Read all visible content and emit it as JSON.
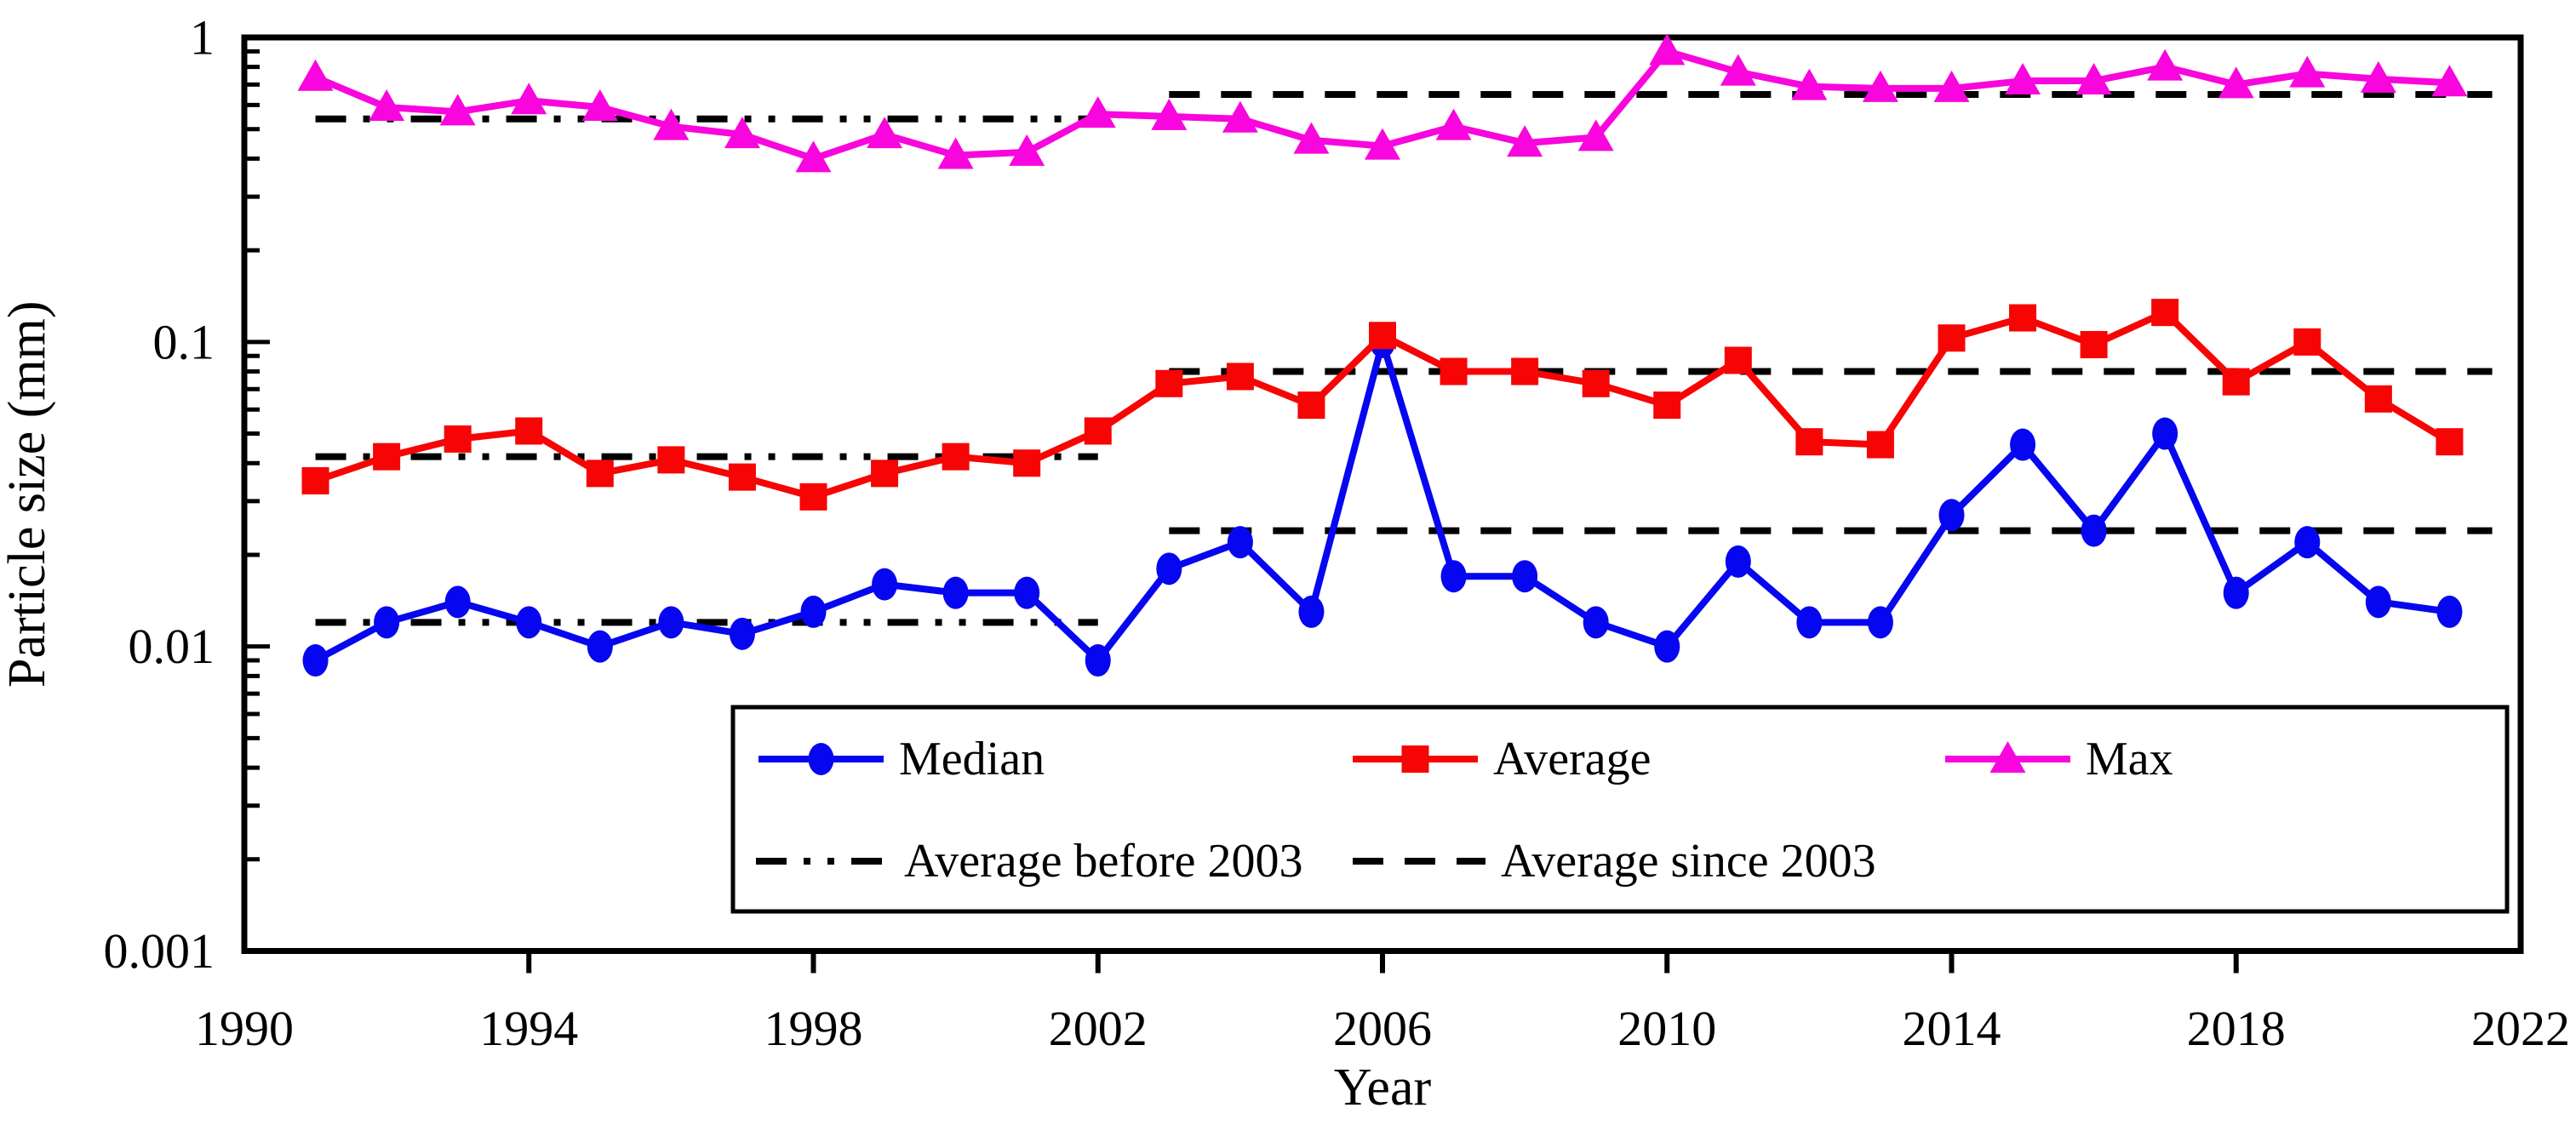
{
  "chart_data": {
    "type": "line",
    "title": "",
    "xlabel": "Year",
    "ylabel": "Particle size (mm)",
    "x_axis": {
      "min": 1990,
      "max": 2022,
      "tick_years": [
        1990,
        1994,
        1998,
        2002,
        2006,
        2010,
        2014,
        2018,
        2022
      ],
      "tick_labels": [
        "1990",
        "1994",
        "1998",
        "2002",
        "2006",
        "2010",
        "2014",
        "2018",
        "2022"
      ]
    },
    "y_axis": {
      "scale": "log",
      "min": 0.001,
      "max": 1,
      "tick_values": [
        1,
        0.1,
        0.01,
        0.001
      ],
      "tick_labels": [
        "1",
        "0.1",
        "0.01",
        "0.001"
      ]
    },
    "grid": "off",
    "legend_position": "bottom-center-box",
    "years": [
      1991,
      1992,
      1993,
      1994,
      1995,
      1996,
      1997,
      1998,
      1999,
      2000,
      2001,
      2002,
      2003,
      2004,
      2005,
      2006,
      2007,
      2008,
      2009,
      2010,
      2011,
      2012,
      2013,
      2014,
      2015,
      2016,
      2017,
      2018,
      2019,
      2020,
      2021
    ],
    "series": [
      {
        "name": "Median",
        "marker": "circle",
        "color": "#0606f0",
        "values": [
          0.009,
          0.012,
          0.014,
          0.012,
          0.01,
          0.012,
          0.011,
          0.013,
          0.016,
          0.015,
          0.015,
          0.009,
          0.018,
          0.022,
          0.013,
          0.1,
          0.017,
          0.017,
          0.012,
          0.01,
          0.019,
          0.012,
          0.012,
          0.027,
          0.046,
          0.024,
          0.05,
          0.015,
          0.022,
          0.014,
          0.013
        ]
      },
      {
        "name": "Average",
        "marker": "square",
        "color": "#f70404",
        "values": [
          0.035,
          0.042,
          0.048,
          0.051,
          0.037,
          0.041,
          0.036,
          0.031,
          0.037,
          0.042,
          0.04,
          0.051,
          0.073,
          0.077,
          0.062,
          0.105,
          0.08,
          0.08,
          0.073,
          0.062,
          0.087,
          0.047,
          0.046,
          0.103,
          0.12,
          0.098,
          0.125,
          0.074,
          0.1,
          0.065,
          0.047
        ]
      },
      {
        "name": "Max",
        "marker": "triangle",
        "color": "#f806dd",
        "values": [
          0.74,
          0.59,
          0.57,
          0.62,
          0.59,
          0.51,
          0.48,
          0.4,
          0.48,
          0.41,
          0.42,
          0.56,
          0.55,
          0.54,
          0.46,
          0.44,
          0.51,
          0.45,
          0.47,
          0.9,
          0.77,
          0.69,
          0.68,
          0.68,
          0.72,
          0.72,
          0.8,
          0.7,
          0.76,
          0.73,
          0.71
        ]
      }
    ],
    "reference_lines": [
      {
        "name": "Average before 2003",
        "style": "dash-dot-dot",
        "color": "#000000",
        "year_start": 1991,
        "year_end": 2002,
        "levels_for": [
          "Median",
          "Average",
          "Max"
        ],
        "levels": [
          0.012,
          0.042,
          0.54
        ]
      },
      {
        "name": "Average since 2003",
        "style": "dashed",
        "color": "#000000",
        "year_start": 2003,
        "year_end": 2021.6,
        "levels_for": [
          "Median",
          "Average",
          "Max"
        ],
        "levels": [
          0.024,
          0.08,
          0.65
        ]
      }
    ],
    "legend": {
      "rows": [
        [
          "Median",
          "Average",
          "Max"
        ],
        [
          "Average before 2003",
          "Average since 2003"
        ]
      ]
    }
  }
}
